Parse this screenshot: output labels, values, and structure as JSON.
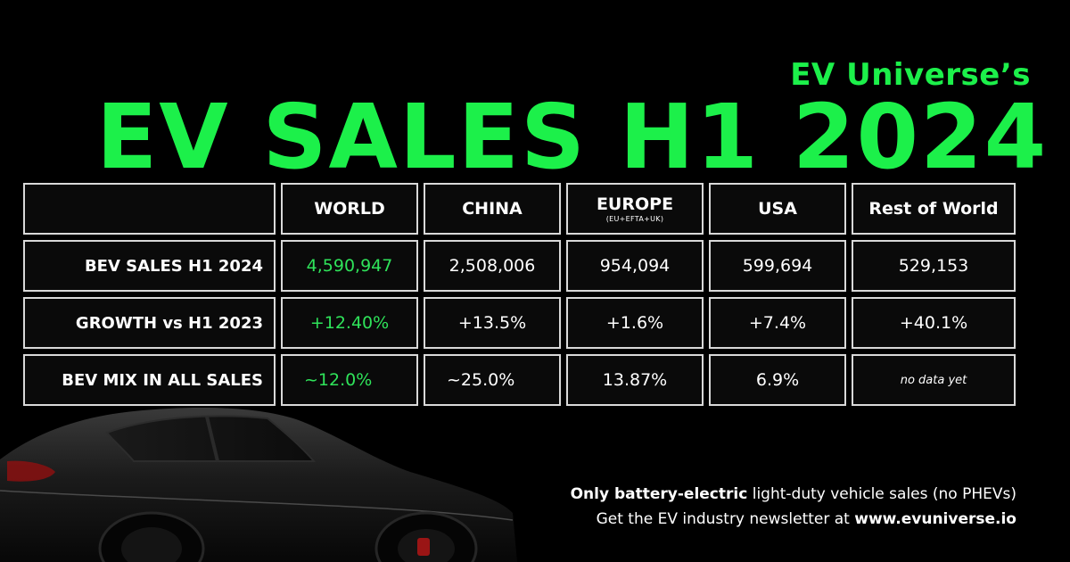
{
  "header": {
    "subtitle": "EV Universe’s",
    "title": "EV SALES H1 2024"
  },
  "table": {
    "columns": [
      {
        "label": "WORLD",
        "note": ""
      },
      {
        "label": "CHINA",
        "note": ""
      },
      {
        "label": "EUROPE",
        "note": "(EU+EFTA+UK)"
      },
      {
        "label": "USA",
        "note": ""
      },
      {
        "label": "Rest of World",
        "note": ""
      }
    ],
    "rows": [
      {
        "label": "BEV SALES H1 2024",
        "values": [
          "4,590,947",
          "2,508,006",
          "954,094",
          "599,694",
          "529,153"
        ]
      },
      {
        "label": "GROWTH vs H1 2023",
        "values": [
          "+12.40%",
          "+13.5%",
          "+1.6%",
          "+7.4%",
          "+40.1%"
        ]
      },
      {
        "label": "BEV MIX IN ALL SALES",
        "values": [
          "~12.0%",
          "~25.0%",
          "13.87%",
          "6.9%",
          "no data yet"
        ]
      }
    ]
  },
  "footer": {
    "line1_bold": "Only battery-electric",
    "line1_rest": " light-duty vehicle sales (no PHEVs)",
    "line2_rest": "Get the EV industry newsletter at ",
    "line2_bold": "www.evuniverse.io"
  },
  "colors": {
    "accent": "#1cf04a",
    "background": "#000000",
    "border": "#d9d9d9"
  }
}
